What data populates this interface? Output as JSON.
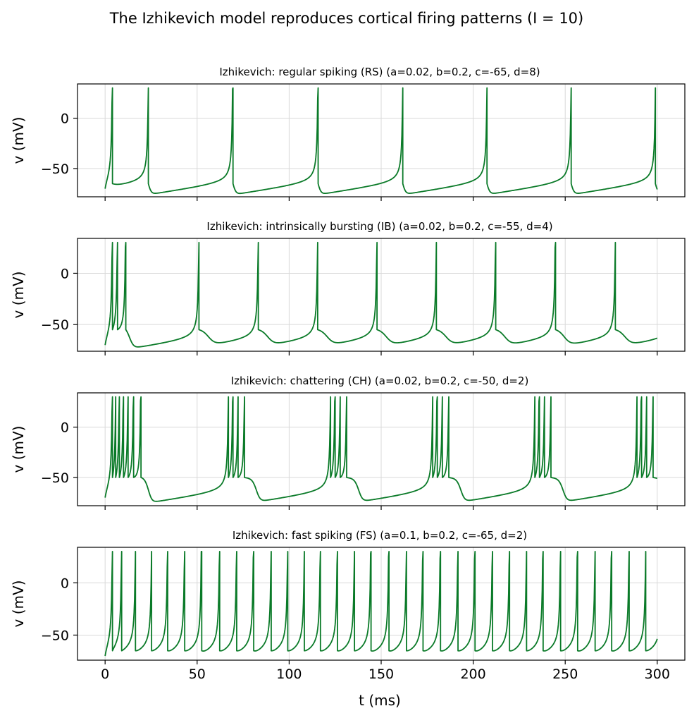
{
  "figure": {
    "title": "The Izhikevich model reproduces cortical firing patterns (I = 10)"
  },
  "chart_data": [
    {
      "type": "line",
      "title": "Izhikevich: regular spiking (RS)   (a=0.02, b=0.2, c=-65, d=8)",
      "xlabel": "",
      "ylabel": "v (mV)",
      "xlim": [
        -15,
        315
      ],
      "ylim": [
        -78,
        34
      ],
      "xticks": [
        0,
        50,
        100,
        150,
        200,
        250,
        300
      ],
      "xtick_labels": [],
      "yticks": [
        0,
        -50
      ],
      "ytick_labels": [
        "0",
        "−50"
      ],
      "grid": true,
      "color": "#0a7a28",
      "params": {
        "a": 0.02,
        "b": 0.2,
        "c": -65,
        "d": 8,
        "I": 10
      },
      "duration_ms": 300,
      "series": [
        {
          "values": []
        }
      ]
    },
    {
      "type": "line",
      "title": "Izhikevich: intrinsically bursting (IB)   (a=0.02, b=0.2, c=-55, d=4)",
      "xlabel": "",
      "ylabel": "v (mV)",
      "xlim": [
        -15,
        315
      ],
      "ylim": [
        -76,
        34
      ],
      "xticks": [
        0,
        50,
        100,
        150,
        200,
        250,
        300
      ],
      "xtick_labels": [],
      "yticks": [
        0,
        -50
      ],
      "ytick_labels": [
        "0",
        "−50"
      ],
      "grid": true,
      "color": "#0a7a28",
      "params": {
        "a": 0.02,
        "b": 0.2,
        "c": -55,
        "d": 4,
        "I": 10
      },
      "duration_ms": 300,
      "series": [
        {
          "values": []
        }
      ]
    },
    {
      "type": "line",
      "title": "Izhikevich: chattering (CH)   (a=0.02, b=0.2, c=-50, d=2)",
      "xlabel": "",
      "ylabel": "v (mV)",
      "xlim": [
        -15,
        315
      ],
      "ylim": [
        -78,
        34
      ],
      "xticks": [
        0,
        50,
        100,
        150,
        200,
        250,
        300
      ],
      "xtick_labels": [],
      "yticks": [
        0,
        -50
      ],
      "ytick_labels": [
        "0",
        "−50"
      ],
      "grid": true,
      "color": "#0a7a28",
      "params": {
        "a": 0.02,
        "b": 0.2,
        "c": -50,
        "d": 2,
        "I": 10
      },
      "duration_ms": 300,
      "series": [
        {
          "values": []
        }
      ]
    },
    {
      "type": "line",
      "title": "Izhikevich: fast spiking (FS)   (a=0.1, b=0.2, c=-65, d=2)",
      "xlabel": "t (ms)",
      "ylabel": "v (mV)",
      "xlim": [
        -15,
        315
      ],
      "ylim": [
        -74,
        34
      ],
      "xticks": [
        0,
        50,
        100,
        150,
        200,
        250,
        300
      ],
      "xtick_labels": [
        "0",
        "50",
        "100",
        "150",
        "200",
        "250",
        "300"
      ],
      "yticks": [
        0,
        -50
      ],
      "ytick_labels": [
        "0",
        "−50"
      ],
      "grid": true,
      "color": "#0a7a28",
      "params": {
        "a": 0.1,
        "b": 0.2,
        "c": -65,
        "d": 2,
        "I": 10
      },
      "duration_ms": 300,
      "series": [
        {
          "values": []
        }
      ]
    }
  ]
}
